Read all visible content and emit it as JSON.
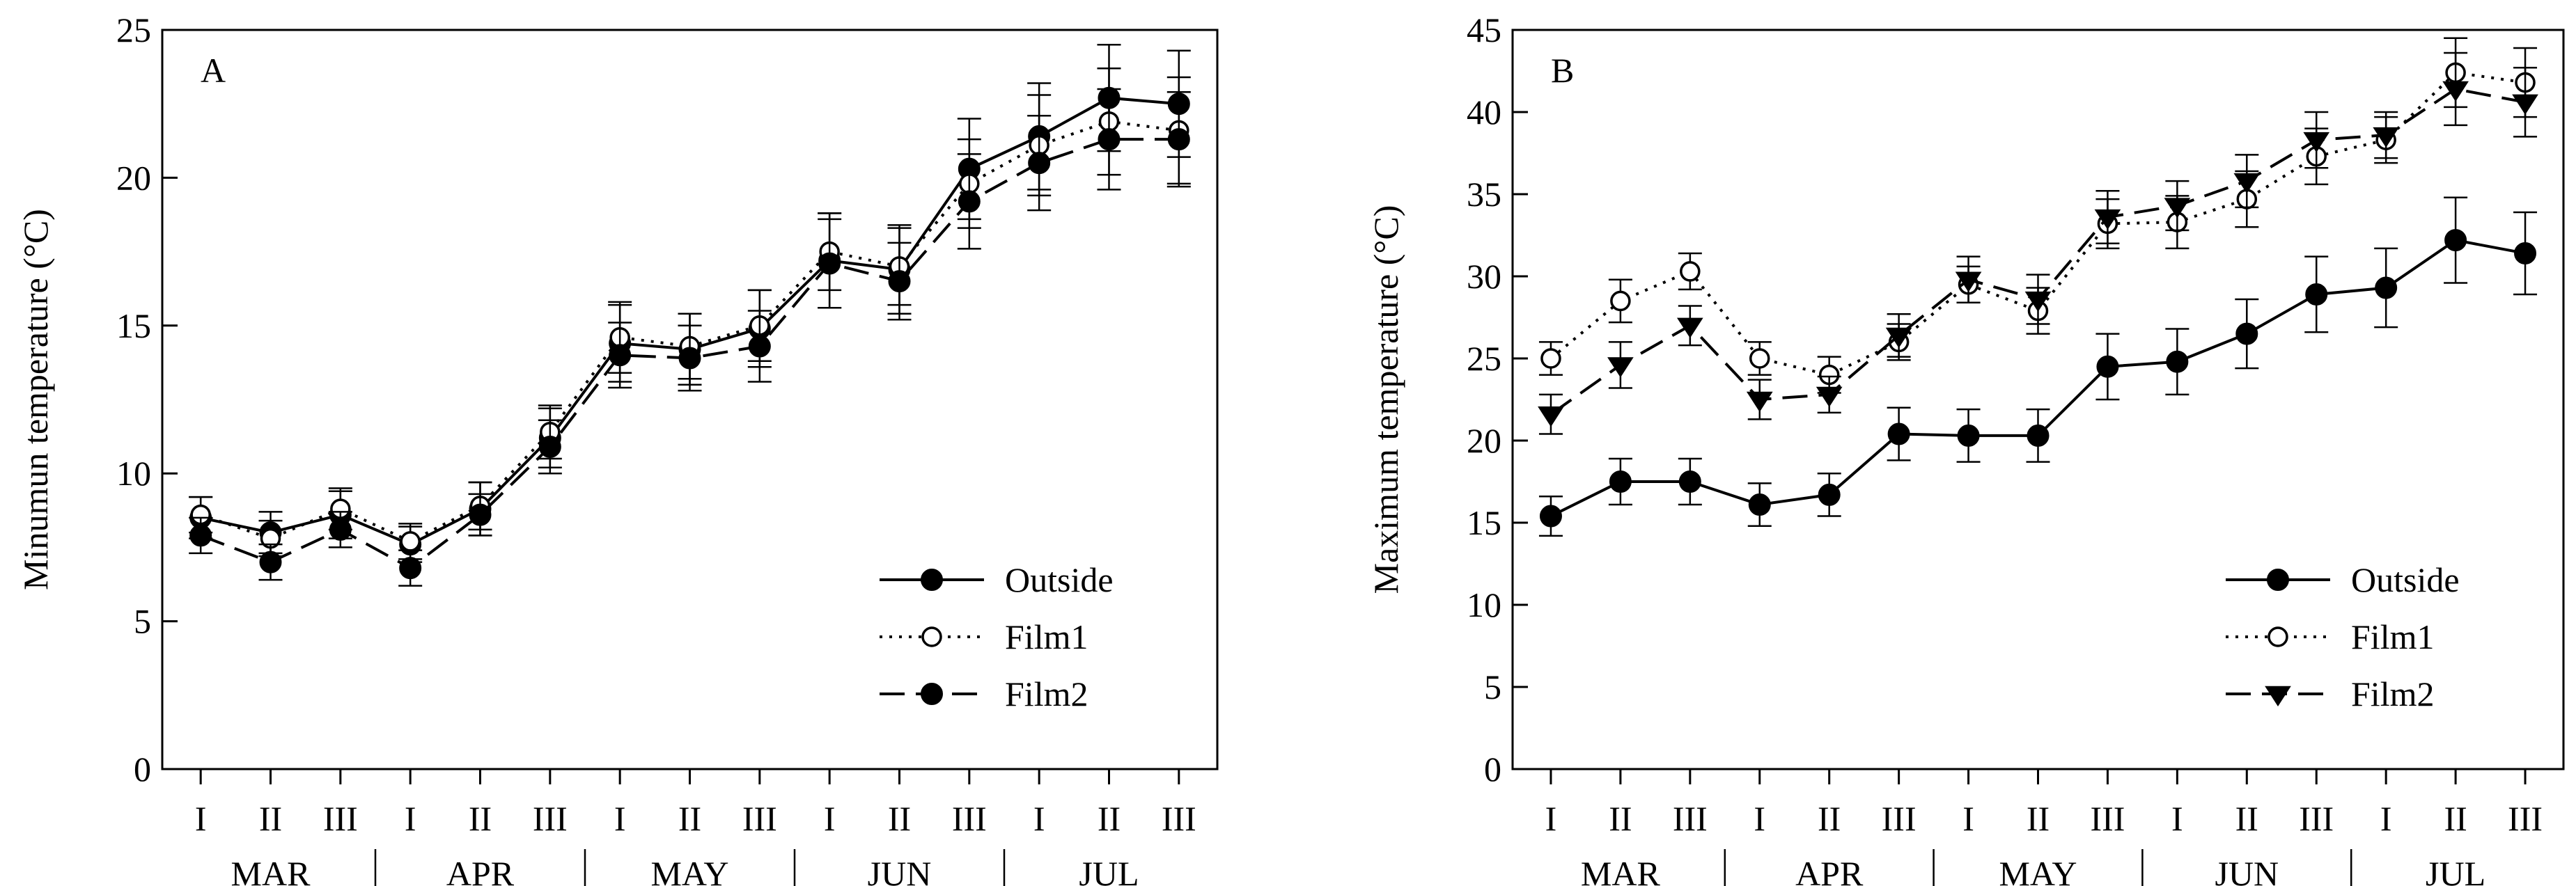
{
  "chart_data": [
    {
      "type": "line",
      "panel_label": "A",
      "title": "",
      "xlabel": "",
      "ylabel": "Minumun temperature (°C)",
      "ylim": [
        0,
        25
      ],
      "yticks": [
        0,
        5,
        10,
        15,
        20,
        25
      ],
      "ytick_labels": [
        "0",
        "5",
        "10",
        "15",
        "20",
        "25"
      ],
      "categories": [
        "I",
        "II",
        "III",
        "I",
        "II",
        "III",
        "I",
        "II",
        "III",
        "I",
        "II",
        "III",
        "I",
        "II",
        "III"
      ],
      "month_groups": [
        {
          "label": "MAR",
          "span": [
            0,
            2
          ]
        },
        {
          "label": "APR",
          "span": [
            3,
            5
          ]
        },
        {
          "label": "MAY",
          "span": [
            6,
            8
          ]
        },
        {
          "label": "JUN",
          "span": [
            9,
            11
          ]
        },
        {
          "label": "JUL",
          "span": [
            12,
            14
          ]
        }
      ],
      "legend_position": "bottom-right",
      "series": [
        {
          "name": "Outside",
          "line": "solid",
          "marker": "circle-filled",
          "values": [
            8.5,
            8.0,
            8.6,
            7.6,
            8.8,
            11.2,
            14.4,
            14.2,
            14.9,
            17.2,
            16.9,
            20.3,
            21.4,
            22.7,
            22.5
          ],
          "errors": [
            0.7,
            0.7,
            0.8,
            0.6,
            0.9,
            1.0,
            1.3,
            1.2,
            1.3,
            1.6,
            1.5,
            1.7,
            1.8,
            1.8,
            1.8
          ]
        },
        {
          "name": "Film1",
          "line": "dotted",
          "marker": "circle-open",
          "values": [
            8.6,
            7.8,
            8.8,
            7.7,
            8.9,
            11.4,
            14.6,
            14.3,
            15.0,
            17.5,
            17.0,
            19.8,
            21.1,
            21.9,
            21.6
          ],
          "errors": [
            0.6,
            0.6,
            0.7,
            0.6,
            0.8,
            0.9,
            1.2,
            1.1,
            1.2,
            1.3,
            1.3,
            1.5,
            1.7,
            1.8,
            1.8
          ]
        },
        {
          "name": "Film2",
          "line": "dashed",
          "marker": "circle-filled",
          "values": [
            7.9,
            7.0,
            8.1,
            6.8,
            8.6,
            10.9,
            14.0,
            13.9,
            14.3,
            17.1,
            16.5,
            19.2,
            20.5,
            21.3,
            21.3
          ],
          "errors": [
            0.6,
            0.6,
            0.6,
            0.6,
            0.7,
            0.9,
            1.1,
            1.1,
            1.2,
            1.5,
            1.3,
            1.6,
            1.6,
            1.7,
            1.6
          ]
        }
      ]
    },
    {
      "type": "line",
      "panel_label": "B",
      "title": "",
      "xlabel": "",
      "ylabel": "Maximum temperature (°C)",
      "ylim": [
        0,
        45
      ],
      "yticks": [
        0,
        5,
        10,
        15,
        20,
        25,
        30,
        35,
        40,
        45
      ],
      "ytick_labels": [
        "0",
        "5",
        "10",
        "15",
        "20",
        "25",
        "30",
        "35",
        "40",
        "45"
      ],
      "categories": [
        "I",
        "II",
        "III",
        "I",
        "II",
        "III",
        "I",
        "II",
        "III",
        "I",
        "II",
        "III",
        "I",
        "II",
        "III"
      ],
      "month_groups": [
        {
          "label": "MAR",
          "span": [
            0,
            2
          ]
        },
        {
          "label": "APR",
          "span": [
            3,
            5
          ]
        },
        {
          "label": "MAY",
          "span": [
            6,
            8
          ]
        },
        {
          "label": "JUN",
          "span": [
            9,
            11
          ]
        },
        {
          "label": "JUL",
          "span": [
            12,
            14
          ]
        }
      ],
      "legend_position": "bottom-right",
      "series": [
        {
          "name": "Outside",
          "line": "solid",
          "marker": "circle-filled",
          "values": [
            15.4,
            17.5,
            17.5,
            16.1,
            16.7,
            20.4,
            20.3,
            20.3,
            24.5,
            24.8,
            26.5,
            28.9,
            29.3,
            32.2,
            31.4
          ],
          "errors": [
            1.2,
            1.4,
            1.4,
            1.3,
            1.3,
            1.6,
            1.6,
            1.6,
            2.0,
            2.0,
            2.1,
            2.3,
            2.4,
            2.6,
            2.5
          ]
        },
        {
          "name": "Film1",
          "line": "dotted",
          "marker": "circle-open",
          "values": [
            25.0,
            28.5,
            30.3,
            25.0,
            24.0,
            26.0,
            29.5,
            27.9,
            33.2,
            33.3,
            34.7,
            37.3,
            38.3,
            42.4,
            41.8
          ],
          "errors": [
            1.0,
            1.3,
            1.1,
            1.0,
            1.1,
            1.1,
            1.1,
            1.4,
            1.5,
            1.6,
            1.7,
            1.7,
            1.4,
            2.1,
            2.1
          ]
        },
        {
          "name": "Film2",
          "line": "dashed",
          "marker": "triangle-down",
          "values": [
            21.6,
            24.6,
            27.0,
            22.5,
            22.8,
            26.4,
            29.8,
            28.6,
            33.6,
            34.3,
            35.8,
            38.3,
            38.6,
            41.4,
            40.6
          ],
          "errors": [
            1.2,
            1.4,
            1.2,
            1.2,
            1.1,
            1.3,
            1.4,
            1.5,
            1.6,
            1.5,
            1.6,
            1.7,
            1.4,
            2.2,
            2.1
          ]
        }
      ]
    }
  ]
}
